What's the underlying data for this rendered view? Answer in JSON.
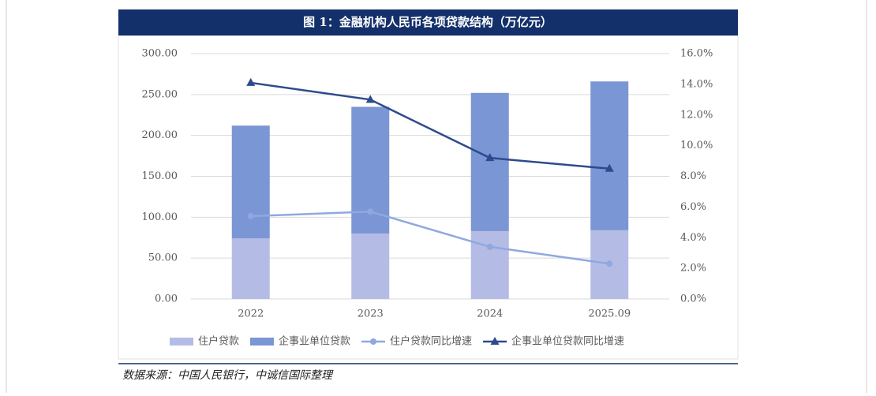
{
  "chart_data": {
    "type": "bar",
    "stacked": true,
    "title": "图 1：金融机构人民币各项贷款结构（万亿元）",
    "source": "数据来源：中国人民银行，中诚信国际整理",
    "categories": [
      "2022",
      "2023",
      "2024",
      "2025.09"
    ],
    "series": [
      {
        "name": "住户贷款",
        "type": "bar",
        "color": "#b4bce6",
        "values": [
          74,
          80,
          83,
          84
        ]
      },
      {
        "name": "企事业单位贷款",
        "type": "bar",
        "color": "#7b96d4",
        "values": [
          138,
          155,
          169,
          182
        ]
      },
      {
        "name": "住户贷款同比增速",
        "type": "line",
        "marker": "circle",
        "axis": "y2",
        "color": "#8fa8e0",
        "values": [
          5.4,
          5.7,
          3.4,
          2.3
        ]
      },
      {
        "name": "企事业单位贷款同比增速",
        "type": "line",
        "marker": "triangle",
        "axis": "y2",
        "color": "#2e4a8e",
        "values": [
          14.1,
          13.0,
          9.2,
          8.5
        ]
      }
    ],
    "ylim": [
      0,
      300
    ],
    "yticks": [
      {
        "value": 0,
        "label": "0.00"
      },
      {
        "value": 50,
        "label": "50.00"
      },
      {
        "value": 100,
        "label": "100.00"
      },
      {
        "value": 150,
        "label": "150.00"
      },
      {
        "value": 200,
        "label": "200.00"
      },
      {
        "value": 250,
        "label": "250.00"
      },
      {
        "value": 300,
        "label": "300.00"
      }
    ],
    "y2lim": [
      0,
      16
    ],
    "y2ticks": [
      {
        "value": 0,
        "label": "0.0%"
      },
      {
        "value": 2,
        "label": "2.0%"
      },
      {
        "value": 4,
        "label": "4.0%"
      },
      {
        "value": 6,
        "label": "6.0%"
      },
      {
        "value": 8,
        "label": "8.0%"
      },
      {
        "value": 10,
        "label": "10.0%"
      },
      {
        "value": 12,
        "label": "12.0%"
      },
      {
        "value": 14,
        "label": "14.0%"
      },
      {
        "value": 16,
        "label": "16.0%"
      }
    ],
    "grid": true
  }
}
